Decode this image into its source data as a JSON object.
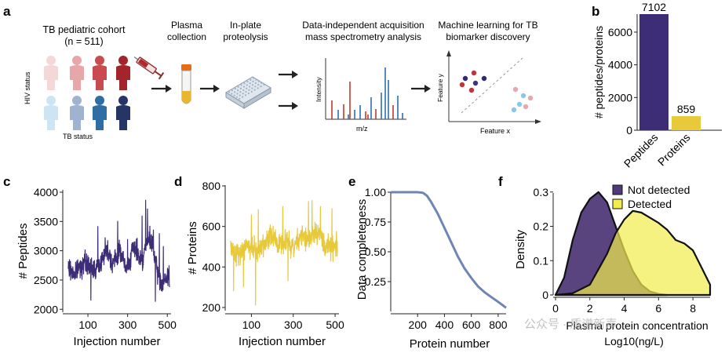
{
  "workflow": {
    "panel_label": "a",
    "cohort_title": "TB pediatric cohort",
    "cohort_n": "(n = 511)",
    "hiv_status": "HIV status",
    "tb_status": "TB status",
    "step_plasma": [
      "Plasma",
      "collection"
    ],
    "step_proteolysis": [
      "In-plate",
      "proteolysis"
    ],
    "step_dia": [
      "Data-independent acquisition",
      "mass spectrometry analysis"
    ],
    "step_ml": [
      "Machine learning for TB",
      "biomarker discovery"
    ],
    "spectrum_xlabel": "m/z",
    "spectrum_ylabel": "Intensity",
    "ml_xlabel": "Feature x",
    "ml_ylabel": "Feature y"
  },
  "watermark": "公众号 · 质谱新声",
  "colors": {
    "purple": "#3d2d77",
    "yellow": "#e7c93a",
    "steel": "#6f86b4",
    "kde_purple": "#503a79",
    "kde_yellow": "#f2ec4c"
  },
  "chart_data": [
    {
      "panel_label": "b",
      "type": "bar",
      "title": "",
      "categories": [
        "Peptides",
        "Proteins"
      ],
      "values": [
        7102,
        859
      ],
      "value_labels": [
        "7102",
        "859"
      ],
      "ylabel": "# peptides/proteins",
      "ylim": [
        0,
        7102
      ],
      "yticks": [
        0,
        2000,
        4000,
        6000
      ],
      "ytick_labels": [
        "0",
        "2000",
        "4000",
        "6000"
      ]
    },
    {
      "panel_label": "c",
      "type": "line",
      "xlabel": "Injection number",
      "ylabel": "# Peptides",
      "xlim": [
        1,
        511
      ],
      "ylim": [
        1950,
        4000
      ],
      "xticks": [
        100,
        300,
        500
      ],
      "xtick_labels": [
        "100",
        "300",
        "500"
      ],
      "yticks": [
        2000,
        2500,
        3000,
        3500,
        4000
      ],
      "ytick_labels": [
        "2000",
        "2500",
        "3000",
        "3500",
        "4000"
      ],
      "series": [
        {
          "name": "Peptides",
          "n_points": 511,
          "x_start": 1,
          "x_end": 511,
          "profile": [
            2700,
            2650,
            2600,
            2700,
            2750,
            2800,
            2750,
            2700,
            2700,
            2750,
            2850,
            3000,
            3000,
            2800,
            2850,
            3000,
            2950,
            2650,
            2800,
            3000,
            3050,
            2900,
            2850,
            3100,
            3200,
            3100,
            2750,
            2500,
            2450,
            2500,
            2600
          ],
          "spikes": [
            [
              150,
              3420
            ],
            [
              187,
              3230
            ],
            [
              250,
              3510
            ],
            [
              300,
              3200
            ],
            [
              373,
              3600
            ],
            [
              391,
              3870
            ],
            [
              400,
              3720
            ],
            [
              430,
              3360
            ],
            [
              460,
              3300
            ],
            [
              480,
              3080
            ],
            [
              115,
              2150
            ],
            [
              440,
              2130
            ]
          ]
        }
      ]
    },
    {
      "panel_label": "d",
      "type": "line",
      "xlabel": "Injection number",
      "ylabel": "# Proteins",
      "xlim": [
        1,
        511
      ],
      "ylim": [
        200,
        800
      ],
      "xticks": [
        100,
        300,
        500
      ],
      "xtick_labels": [
        "100",
        "300",
        "500"
      ],
      "yticks": [
        200,
        400,
        600,
        800
      ],
      "ytick_labels": [
        "200",
        "400",
        "600",
        "800"
      ],
      "series": [
        {
          "name": "Proteins",
          "n_points": 511,
          "x_start": 1,
          "x_end": 511,
          "profile": [
            490,
            480,
            470,
            480,
            490,
            500,
            490,
            480,
            490,
            500,
            520,
            540,
            540,
            520,
            520,
            540,
            530,
            500,
            510,
            540,
            560,
            540,
            530,
            570,
            580,
            560,
            520,
            500,
            490,
            490,
            500
          ],
          "spikes": [
            [
              120,
              210
            ],
            [
              15,
              280
            ],
            [
              62,
              300
            ],
            [
              100,
              660
            ],
            [
              133,
              685
            ],
            [
              250,
              700
            ],
            [
              373,
              725
            ],
            [
              390,
              730
            ],
            [
              430,
              700
            ],
            [
              485,
              690
            ],
            [
              275,
              330
            ]
          ]
        }
      ]
    },
    {
      "panel_label": "e",
      "type": "line",
      "xlabel": "Protein number",
      "ylabel": "Data completeness",
      "xlim": [
        1,
        859
      ],
      "ylim": [
        0.02,
        1.0
      ],
      "xticks": [
        200,
        400,
        600,
        800
      ],
      "xtick_labels": [
        "200",
        "400",
        "600",
        "800"
      ],
      "yticks": [
        0.25,
        0.5,
        0.75,
        1.0
      ],
      "ytick_labels": [
        "0.25",
        "0.50",
        "0.75",
        "1.00"
      ],
      "series": [
        {
          "name": "Completeness",
          "x": [
            1,
            200,
            240,
            270,
            300,
            350,
            400,
            450,
            500,
            550,
            600,
            650,
            700,
            750,
            800,
            830,
            859
          ],
          "y": [
            1.0,
            1.0,
            0.995,
            0.97,
            0.92,
            0.82,
            0.7,
            0.58,
            0.46,
            0.36,
            0.28,
            0.21,
            0.16,
            0.12,
            0.08,
            0.055,
            0.03
          ]
        }
      ]
    },
    {
      "panel_label": "f",
      "type": "area",
      "xlabel": "Plasma protein concentration",
      "xlabel_unit": "Log10(ng/L)",
      "ylabel": "Density",
      "xlim": [
        0,
        9
      ],
      "ylim": [
        0,
        0.32
      ],
      "xticks": [
        0,
        2,
        4,
        6,
        8
      ],
      "xtick_labels": [
        "0",
        "2",
        "4",
        "6",
        "8"
      ],
      "yticks": [
        0,
        0.1,
        0.2,
        0.3
      ],
      "ytick_labels": [
        "0",
        "0.1",
        "0.2",
        "0.3"
      ],
      "legend": "top-right",
      "series": [
        {
          "name": "Not detected",
          "x": [
            0,
            0.5,
            1.0,
            1.5,
            2.0,
            2.5,
            3.0,
            3.5,
            4.0,
            4.5,
            5.0,
            5.5,
            6.0,
            6.5
          ],
          "y": [
            0.0,
            0.05,
            0.16,
            0.24,
            0.28,
            0.3,
            0.27,
            0.2,
            0.13,
            0.07,
            0.03,
            0.01,
            0.003,
            0.0
          ]
        },
        {
          "name": "Detected",
          "x": [
            0,
            1,
            2,
            3,
            3.5,
            4,
            4.5,
            5,
            5.5,
            6,
            6.5,
            7,
            7.5,
            8,
            8.5,
            9
          ],
          "y": [
            0.0,
            0.005,
            0.03,
            0.12,
            0.18,
            0.22,
            0.245,
            0.24,
            0.225,
            0.21,
            0.19,
            0.16,
            0.15,
            0.13,
            0.08,
            0.03
          ]
        }
      ]
    }
  ]
}
